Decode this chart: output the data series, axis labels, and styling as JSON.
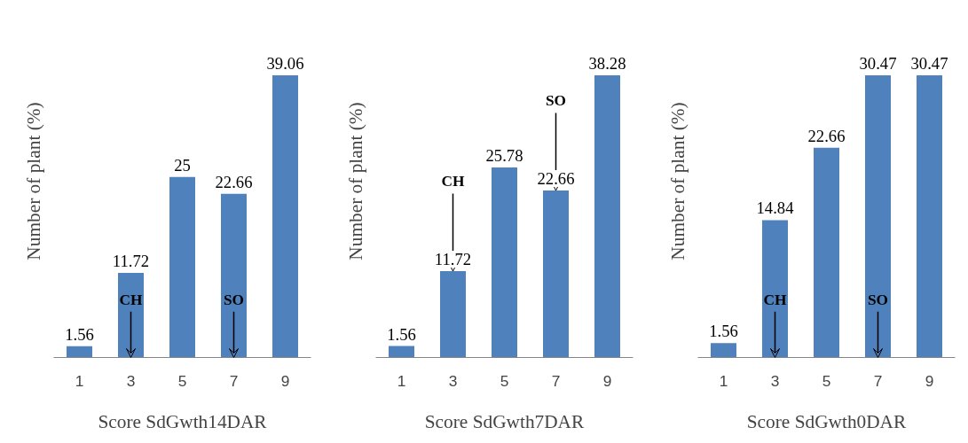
{
  "chart_data": [
    {
      "type": "bar",
      "xlabel": "Score SdGwth14DAR",
      "ylabel": "Number of plant (%)",
      "categories": [
        "1",
        "3",
        "5",
        "7",
        "9"
      ],
      "values": [
        1.56,
        11.72,
        25,
        22.66,
        39.06
      ],
      "color": "#4f81bd",
      "data_labels": true,
      "grid": false,
      "annotations": [
        {
          "text": "CH",
          "x": "3",
          "y": 0
        },
        {
          "text": "SO",
          "x": "7",
          "y": 0
        }
      ]
    },
    {
      "type": "bar",
      "xlabel": "Score SdGwth7DAR",
      "ylabel": "Number of plant (%)",
      "categories": [
        "1",
        "3",
        "5",
        "7",
        "9"
      ],
      "values": [
        1.56,
        11.72,
        25.78,
        22.66,
        38.28
      ],
      "color": "#4f81bd",
      "data_labels": true,
      "grid": false,
      "annotations": [
        {
          "text": "CH",
          "x": "3",
          "y": 11.72
        },
        {
          "text": "SO",
          "x": "7",
          "y": 22.66
        }
      ]
    },
    {
      "type": "bar",
      "xlabel": "Score SdGwth0DAR",
      "ylabel": "Number of plant (%)",
      "categories": [
        "1",
        "3",
        "5",
        "7",
        "9"
      ],
      "values": [
        1.56,
        14.84,
        22.66,
        30.47,
        30.47
      ],
      "color": "#4f81bd",
      "data_labels": true,
      "grid": false,
      "annotations": [
        {
          "text": "CH",
          "x": "3",
          "y": 0
        },
        {
          "text": "SO",
          "x": "7",
          "y": 0
        }
      ]
    }
  ]
}
